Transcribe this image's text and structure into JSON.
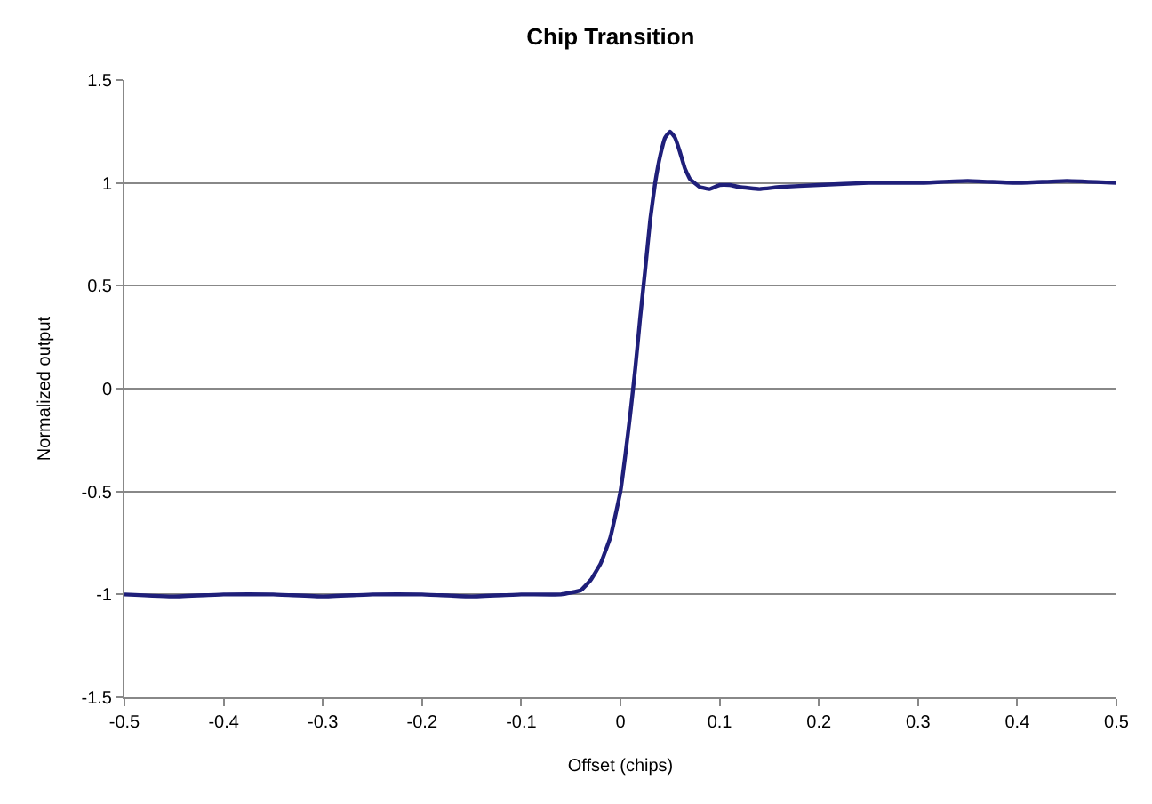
{
  "chart_data": {
    "type": "line",
    "title": "Chip Transition",
    "xlabel": "Offset (chips)",
    "ylabel": "Normalized output",
    "x": [
      -0.5,
      -0.45,
      -0.4,
      -0.35,
      -0.3,
      -0.25,
      -0.2,
      -0.15,
      -0.1,
      -0.06,
      -0.04,
      -0.03,
      -0.02,
      -0.01,
      0,
      0.005,
      0.01,
      0.015,
      0.02,
      0.025,
      0.03,
      0.035,
      0.04,
      0.045,
      0.05,
      0.055,
      0.06,
      0.065,
      0.07,
      0.08,
      0.09,
      0.1,
      0.11,
      0.12,
      0.14,
      0.16,
      0.2,
      0.25,
      0.3,
      0.35,
      0.4,
      0.45,
      0.5
    ],
    "series": [
      {
        "color": "#1f1f7a",
        "values": [
          -1,
          -1.01,
          -1,
          -1,
          -1.01,
          -1,
          -1,
          -1.01,
          -1,
          -1,
          -0.98,
          -0.93,
          -0.85,
          -0.72,
          -0.5,
          -0.32,
          -0.12,
          0.1,
          0.35,
          0.58,
          0.82,
          1.0,
          1.13,
          1.22,
          1.25,
          1.22,
          1.15,
          1.07,
          1.02,
          0.98,
          0.97,
          0.99,
          0.99,
          0.98,
          0.97,
          0.98,
          0.99,
          1.0,
          1.0,
          1.01,
          1.0,
          1.01,
          1.0
        ]
      }
    ],
    "xlim": [
      -0.5,
      0.5
    ],
    "xticks": [
      -0.5,
      -0.4,
      -0.3,
      -0.2,
      -0.1,
      0,
      0.1,
      0.2,
      0.3,
      0.4,
      0.5
    ],
    "ylim": [
      -1.5,
      1.5
    ],
    "yticks": [
      -1.5,
      -1,
      -0.5,
      0,
      0.5,
      1,
      1.5
    ],
    "grid": "y",
    "marker": "none",
    "line_style": "solid"
  }
}
